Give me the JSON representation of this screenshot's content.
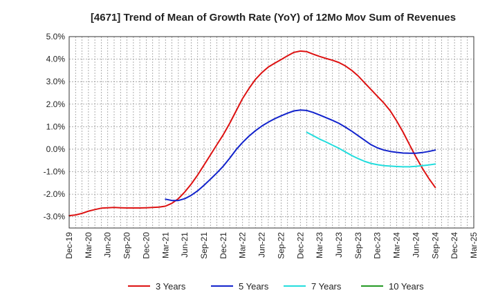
{
  "chart_data": {
    "type": "line",
    "title": "[4671]  Trend of Mean of Growth Rate (YoY) of 12Mo Mov Sum of Revenues",
    "xlabel": "",
    "ylabel": "",
    "ylim": [
      -3.5,
      5.0
    ],
    "y_ticks": [
      5.0,
      4.0,
      3.0,
      2.0,
      1.0,
      0.0,
      -1.0,
      -2.0,
      -3.0
    ],
    "y_tick_labels": [
      "5.0%",
      "4.0%",
      "3.0%",
      "2.0%",
      "1.0%",
      "0.0%",
      "-1.0%",
      "-2.0%",
      "-3.0%"
    ],
    "x_tick_labels": [
      "Dec-19",
      "Mar-20",
      "Jun-20",
      "Sep-20",
      "Dec-20",
      "Mar-21",
      "Jun-21",
      "Sep-21",
      "Dec-21",
      "Mar-22",
      "Jun-22",
      "Sep-22",
      "Dec-22",
      "Mar-23",
      "Jun-23",
      "Sep-23",
      "Dec-23",
      "Mar-24",
      "Jun-24",
      "Sep-24",
      "Dec-24",
      "Mar-25"
    ],
    "grid": true,
    "legend_position": "bottom",
    "series": [
      {
        "name": "3 Years",
        "color": "#dd1111",
        "points": [
          [
            0,
            -2.95
          ],
          [
            1,
            -2.92
          ],
          [
            2,
            -2.85
          ],
          [
            3,
            -2.75
          ],
          [
            4,
            -2.68
          ],
          [
            5,
            -2.62
          ],
          [
            6,
            -2.6
          ],
          [
            7,
            -2.59
          ],
          [
            8,
            -2.6
          ],
          [
            9,
            -2.61
          ],
          [
            10,
            -2.61
          ],
          [
            11,
            -2.61
          ],
          [
            12,
            -2.6
          ],
          [
            13,
            -2.59
          ],
          [
            14,
            -2.57
          ],
          [
            15,
            -2.53
          ],
          [
            16,
            -2.4
          ],
          [
            17,
            -2.2
          ],
          [
            18,
            -1.9
          ],
          [
            19,
            -1.55
          ],
          [
            20,
            -1.15
          ],
          [
            21,
            -0.7
          ],
          [
            22,
            -0.25
          ],
          [
            23,
            0.2
          ],
          [
            24,
            0.65
          ],
          [
            25,
            1.15
          ],
          [
            26,
            1.7
          ],
          [
            27,
            2.25
          ],
          [
            28,
            2.7
          ],
          [
            29,
            3.1
          ],
          [
            30,
            3.4
          ],
          [
            31,
            3.65
          ],
          [
            32,
            3.82
          ],
          [
            33,
            3.98
          ],
          [
            34,
            4.15
          ],
          [
            35,
            4.3
          ],
          [
            36,
            4.36
          ],
          [
            37,
            4.33
          ],
          [
            38,
            4.22
          ],
          [
            39,
            4.12
          ],
          [
            40,
            4.03
          ],
          [
            41,
            3.95
          ],
          [
            42,
            3.85
          ],
          [
            43,
            3.7
          ],
          [
            44,
            3.5
          ],
          [
            45,
            3.25
          ],
          [
            46,
            2.95
          ],
          [
            47,
            2.65
          ],
          [
            48,
            2.35
          ],
          [
            49,
            2.05
          ],
          [
            50,
            1.7
          ],
          [
            51,
            1.25
          ],
          [
            52,
            0.75
          ],
          [
            53,
            0.2
          ],
          [
            54,
            -0.35
          ],
          [
            55,
            -0.85
          ],
          [
            56,
            -1.3
          ],
          [
            57,
            -1.7
          ]
        ]
      },
      {
        "name": "5 Years",
        "color": "#1122cc",
        "points": [
          [
            15,
            -2.22
          ],
          [
            16,
            -2.28
          ],
          [
            17,
            -2.28
          ],
          [
            18,
            -2.2
          ],
          [
            19,
            -2.05
          ],
          [
            20,
            -1.85
          ],
          [
            21,
            -1.6
          ],
          [
            22,
            -1.33
          ],
          [
            23,
            -1.05
          ],
          [
            24,
            -0.75
          ],
          [
            25,
            -0.4
          ],
          [
            26,
            -0.02
          ],
          [
            27,
            0.3
          ],
          [
            28,
            0.58
          ],
          [
            29,
            0.82
          ],
          [
            30,
            1.03
          ],
          [
            31,
            1.2
          ],
          [
            32,
            1.35
          ],
          [
            33,
            1.48
          ],
          [
            34,
            1.6
          ],
          [
            35,
            1.7
          ],
          [
            36,
            1.74
          ],
          [
            37,
            1.72
          ],
          [
            38,
            1.63
          ],
          [
            39,
            1.52
          ],
          [
            40,
            1.4
          ],
          [
            41,
            1.28
          ],
          [
            42,
            1.15
          ],
          [
            43,
            0.98
          ],
          [
            44,
            0.8
          ],
          [
            45,
            0.6
          ],
          [
            46,
            0.4
          ],
          [
            47,
            0.2
          ],
          [
            48,
            0.06
          ],
          [
            49,
            -0.04
          ],
          [
            50,
            -0.1
          ],
          [
            51,
            -0.14
          ],
          [
            52,
            -0.17
          ],
          [
            53,
            -0.18
          ],
          [
            54,
            -0.18
          ],
          [
            55,
            -0.15
          ],
          [
            56,
            -0.1
          ],
          [
            57,
            -0.04
          ]
        ]
      },
      {
        "name": "7 Years",
        "color": "#22dddd",
        "points": [
          [
            37,
            0.75
          ],
          [
            38,
            0.6
          ],
          [
            39,
            0.45
          ],
          [
            40,
            0.32
          ],
          [
            41,
            0.18
          ],
          [
            42,
            0.04
          ],
          [
            43,
            -0.12
          ],
          [
            44,
            -0.28
          ],
          [
            45,
            -0.42
          ],
          [
            46,
            -0.54
          ],
          [
            47,
            -0.63
          ],
          [
            48,
            -0.69
          ],
          [
            49,
            -0.73
          ],
          [
            50,
            -0.75
          ],
          [
            51,
            -0.77
          ],
          [
            52,
            -0.78
          ],
          [
            53,
            -0.78
          ],
          [
            54,
            -0.76
          ],
          [
            55,
            -0.73
          ],
          [
            56,
            -0.7
          ],
          [
            57,
            -0.66
          ]
        ]
      },
      {
        "name": "10 Years",
        "color": "#229922",
        "points": []
      }
    ]
  }
}
